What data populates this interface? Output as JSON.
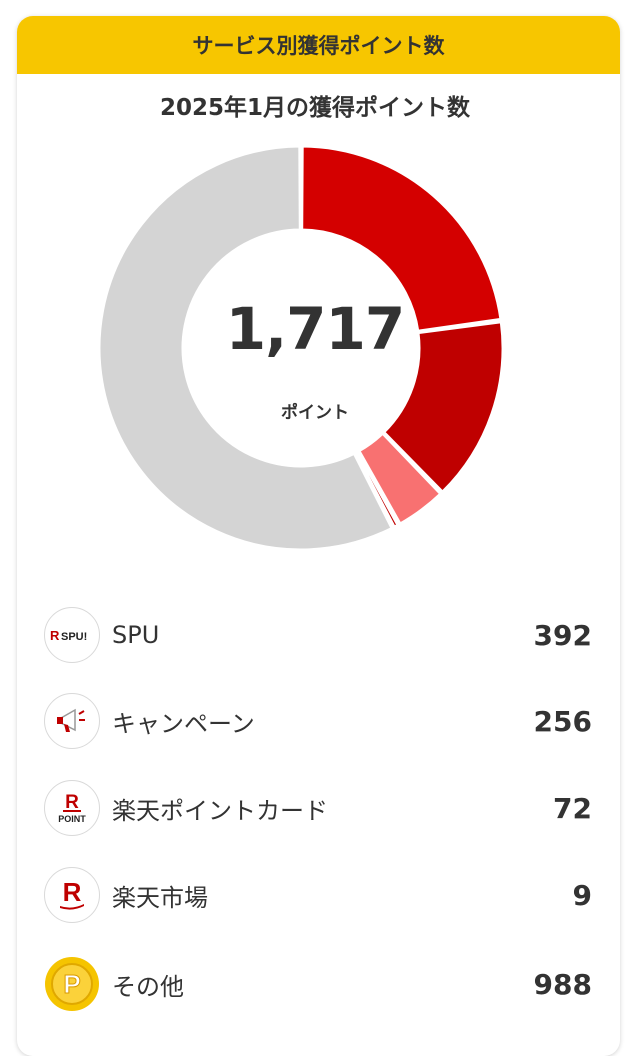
{
  "header": {
    "title": "サービス別獲得ポイント数"
  },
  "chart": {
    "title": "2025年1月の獲得ポイント数",
    "total": "1,717",
    "unit": "ポイント"
  },
  "chart_data": {
    "type": "pie",
    "title": "2025年1月の獲得ポイント数",
    "categories": [
      "SPU",
      "キャンペーン",
      "楽天ポイントカード",
      "楽天市場",
      "その他"
    ],
    "values": [
      392,
      256,
      72,
      9,
      988
    ],
    "colors": [
      "#d40000",
      "#bf0000",
      "#f87171",
      "#c00000",
      "#d4d4d4"
    ],
    "total": 1717
  },
  "items": [
    {
      "label": "SPU",
      "value": "392",
      "icon": "spu-icon",
      "icon_text": "SPU!"
    },
    {
      "label": "キャンペーン",
      "value": "256",
      "icon": "megaphone-icon"
    },
    {
      "label": "楽天ポイントカード",
      "value": "72",
      "icon": "rakuten-pointcard-icon",
      "icon_text": "POINT"
    },
    {
      "label": "楽天市場",
      "value": "9",
      "icon": "rakuten-ichiba-icon"
    },
    {
      "label": "その他",
      "value": "988",
      "icon": "point-coin-icon",
      "icon_text": "P"
    }
  ]
}
